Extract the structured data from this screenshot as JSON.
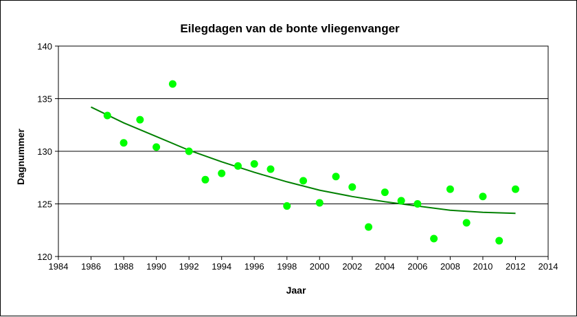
{
  "chart_data": {
    "type": "scatter",
    "title": "Eilegdagen van de bonte vliegenvanger",
    "xlabel": "Jaar",
    "ylabel": "Dagnummer",
    "xlim": [
      1984,
      2014
    ],
    "ylim": [
      120,
      140
    ],
    "xticks": [
      1984,
      1986,
      1988,
      1990,
      1992,
      1994,
      1996,
      1998,
      2000,
      2002,
      2004,
      2006,
      2008,
      2010,
      2012,
      2014
    ],
    "yticks": [
      120,
      125,
      130,
      135,
      140
    ],
    "grid": "horizontal",
    "legend": "none",
    "series": [
      {
        "type": "scatter",
        "color": "#00ff00",
        "x": [
          1987,
          1988,
          1989,
          1990,
          1991,
          1992,
          1993,
          1994,
          1995,
          1996,
          1997,
          1998,
          1999,
          2000,
          2001,
          2002,
          2003,
          2004,
          2005,
          2006,
          2007,
          2008,
          2009,
          2010,
          2011,
          2012
        ],
        "y": [
          133.4,
          130.8,
          133.0,
          130.4,
          136.4,
          130.0,
          127.3,
          127.9,
          128.6,
          128.8,
          128.3,
          124.8,
          127.2,
          125.1,
          127.6,
          126.6,
          122.8,
          126.1,
          125.3,
          125.0,
          121.7,
          126.4,
          123.2,
          125.7,
          121.5,
          126.4
        ]
      },
      {
        "type": "trendline",
        "color": "#008000",
        "x": [
          1986,
          1988,
          1990,
          1992,
          1994,
          1996,
          1998,
          2000,
          2002,
          2004,
          2006,
          2008,
          2010,
          2012
        ],
        "y": [
          134.2,
          132.7,
          131.4,
          130.1,
          129.0,
          128.0,
          127.1,
          126.3,
          125.7,
          125.2,
          124.8,
          124.4,
          124.2,
          124.1
        ]
      }
    ]
  }
}
